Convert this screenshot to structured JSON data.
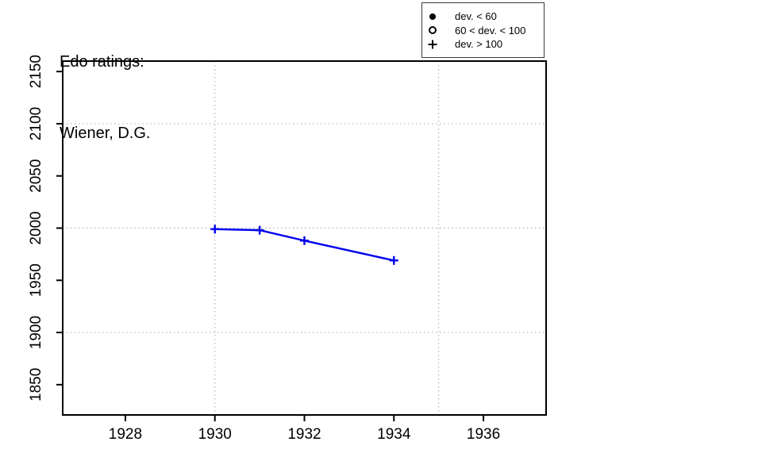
{
  "chart_data": {
    "type": "line",
    "title": "Edo ratings:",
    "subtitle": "Wiener, D.G.",
    "xlabel": "",
    "ylabel": "",
    "series": [
      {
        "name": "Wiener, D.G.",
        "marker": "plus",
        "x": [
          1930,
          1931,
          1932,
          1934
        ],
        "y": [
          1999,
          1998,
          1988,
          1969
        ]
      }
    ],
    "xlim": [
      1926.6,
      1937.4
    ],
    "ylim": [
      1821,
      2160
    ],
    "xticks": [
      1928,
      1930,
      1932,
      1934,
      1936
    ],
    "yticks": [
      1850,
      1900,
      1950,
      2000,
      2050,
      2100,
      2150
    ],
    "x_gridlines": [
      1930,
      1935
    ],
    "y_gridlines": [
      1900,
      2000,
      2100
    ],
    "grid_style": "dotted",
    "legend": {
      "position": "top-right",
      "items": [
        {
          "symbol": "filled-circle",
          "label": "dev. < 60"
        },
        {
          "symbol": "open-circle",
          "label": "60 < dev. < 100"
        },
        {
          "symbol": "plus",
          "label": "dev. > 100"
        }
      ]
    },
    "colors": {
      "line": "#0000ee",
      "grid": "#b3b3b3",
      "axis": "#000000",
      "background": "#ffffff"
    }
  }
}
